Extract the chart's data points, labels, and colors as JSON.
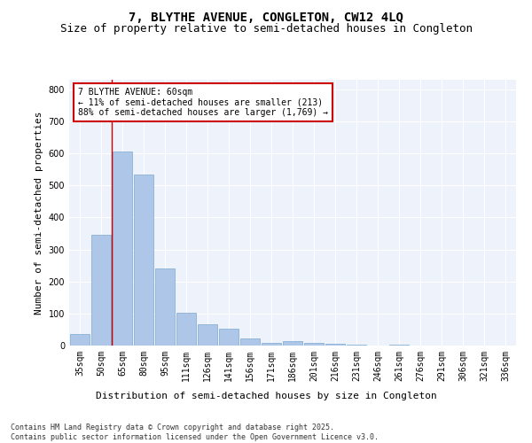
{
  "title": "7, BLYTHE AVENUE, CONGLETON, CW12 4LQ",
  "subtitle": "Size of property relative to semi-detached houses in Congleton",
  "xlabel": "Distribution of semi-detached houses by size in Congleton",
  "ylabel": "Number of semi-detached properties",
  "categories": [
    "35sqm",
    "50sqm",
    "65sqm",
    "80sqm",
    "95sqm",
    "111sqm",
    "126sqm",
    "141sqm",
    "156sqm",
    "171sqm",
    "186sqm",
    "201sqm",
    "216sqm",
    "231sqm",
    "246sqm",
    "261sqm",
    "276sqm",
    "291sqm",
    "306sqm",
    "321sqm",
    "336sqm"
  ],
  "values": [
    35,
    345,
    605,
    535,
    240,
    102,
    67,
    52,
    22,
    8,
    13,
    7,
    5,
    3,
    1,
    2,
    0,
    1,
    0,
    0,
    1
  ],
  "bar_color": "#aec6e8",
  "bar_edge_color": "#7aaad0",
  "vline_color": "#cc0000",
  "annotation_text": "7 BLYTHE AVENUE: 60sqm\n← 11% of semi-detached houses are smaller (213)\n88% of semi-detached houses are larger (1,769) →",
  "annotation_box_color": "#cc0000",
  "ylim": [
    0,
    830
  ],
  "yticks": [
    0,
    100,
    200,
    300,
    400,
    500,
    600,
    700,
    800
  ],
  "background_color": "#edf2fb",
  "footer": "Contains HM Land Registry data © Crown copyright and database right 2025.\nContains public sector information licensed under the Open Government Licence v3.0.",
  "title_fontsize": 10,
  "subtitle_fontsize": 9,
  "tick_fontsize": 7,
  "ylabel_fontsize": 8,
  "xlabel_fontsize": 8,
  "footer_fontsize": 6
}
